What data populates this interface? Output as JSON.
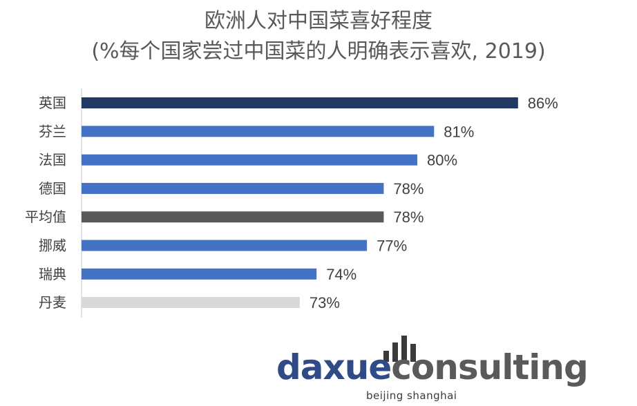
{
  "chart_data": {
    "type": "bar",
    "orientation": "horizontal",
    "title": "欧洲人对中国菜喜好程度",
    "subtitle": "(%每个国家尝过中国菜的人明确表示喜欢, 2019)",
    "categories": [
      "英国",
      "芬兰",
      "法国",
      "德国",
      "平均值",
      "挪威",
      "瑞典",
      "丹麦"
    ],
    "values": [
      86,
      81,
      80,
      78,
      78,
      77,
      74,
      73
    ],
    "value_labels": [
      "86%",
      "81%",
      "80%",
      "78%",
      "78%",
      "77%",
      "74%",
      "73%"
    ],
    "bar_colors": [
      "#1f3864",
      "#4472c4",
      "#4472c4",
      "#4472c4",
      "#595959",
      "#4472c4",
      "#4472c4",
      "#d9d9d9"
    ],
    "xlim": [
      60,
      90
    ],
    "grid": false,
    "legend": "none"
  },
  "logo": {
    "word_part1": "daxue",
    "word_part2": "consulting",
    "tagline": "beijing shanghai"
  }
}
